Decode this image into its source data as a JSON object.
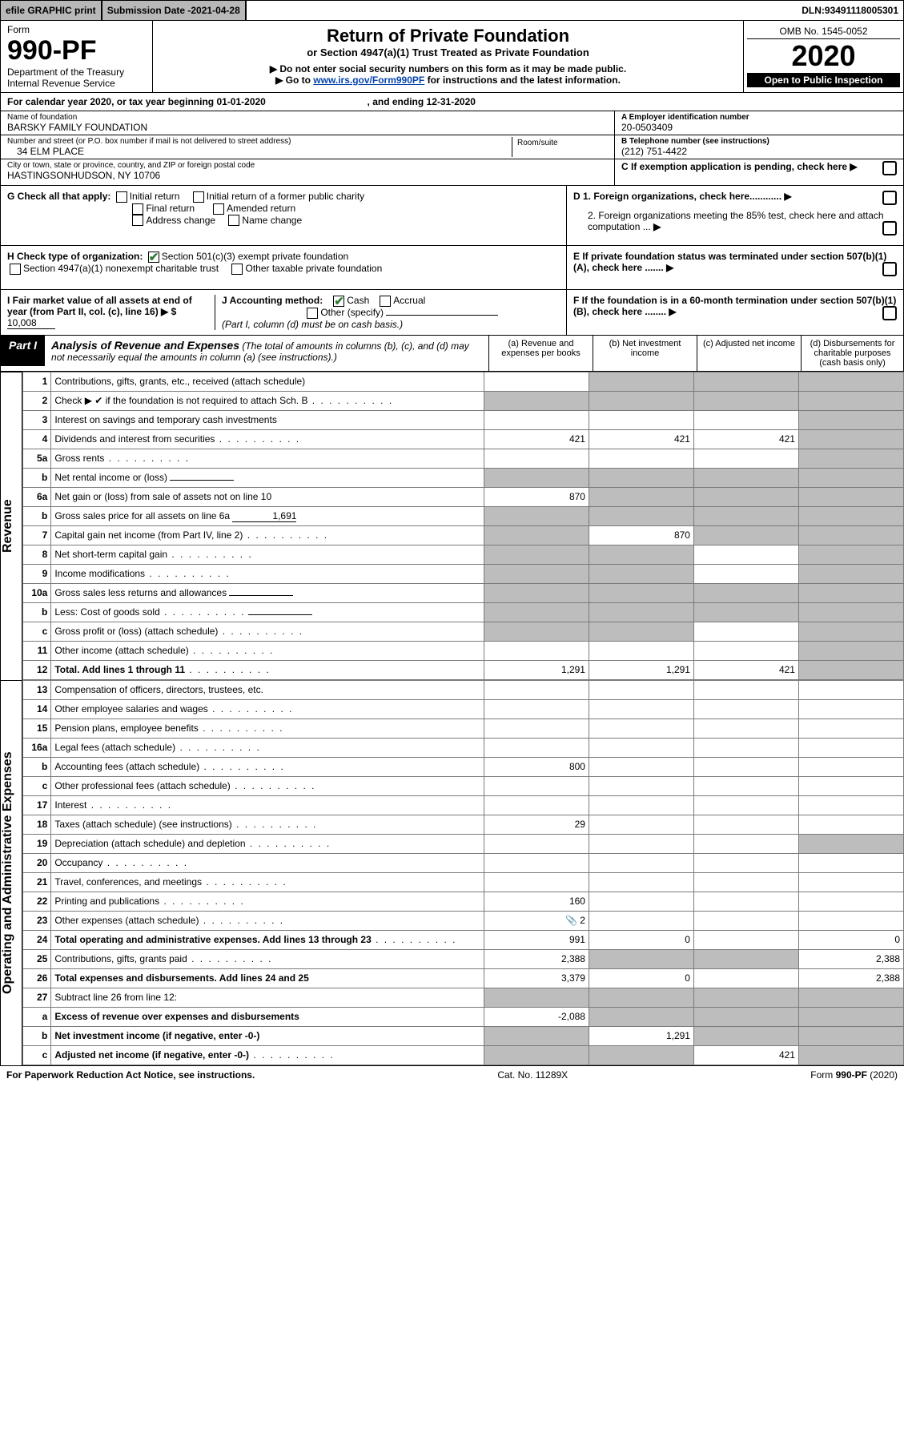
{
  "topbar": {
    "efile": "efile GRAPHIC print",
    "submission_label": "Submission Date - ",
    "submission_date": "2021-04-28",
    "dln_label": "DLN: ",
    "dln": "93491118005301"
  },
  "header": {
    "form_label": "Form",
    "form_number": "990-PF",
    "dept1": "Department of the Treasury",
    "dept2": "Internal Revenue Service",
    "title": "Return of Private Foundation",
    "subtitle": "or Section 4947(a)(1) Trust Treated as Private Foundation",
    "note1": "▶ Do not enter social security numbers on this form as it may be made public.",
    "note2_pre": "▶ Go to ",
    "note2_link": "www.irs.gov/Form990PF",
    "note2_post": " for instructions and the latest information.",
    "omb": "OMB No. 1545-0052",
    "year": "2020",
    "open": "Open to Public Inspection"
  },
  "calyear": {
    "text_pre": "For calendar year 2020, or tax year beginning ",
    "begin": "01-01-2020",
    "mid": " , and ending ",
    "end": "12-31-2020"
  },
  "foundation": {
    "name_label": "Name of foundation",
    "name": "BARSKY FAMILY FOUNDATION",
    "addr_label": "Number and street (or P.O. box number if mail is not delivered to street address)",
    "addr": "34 ELM PLACE",
    "room_label": "Room/suite",
    "city_label": "City or town, state or province, country, and ZIP or foreign postal code",
    "city": "HASTINGSONHUDSON, NY  10706",
    "ein_label": "A Employer identification number",
    "ein": "20-0503409",
    "phone_label": "B Telephone number (see instructions)",
    "phone": "(212) 751-4422",
    "c_label": "C If exemption application is pending, check here"
  },
  "checks": {
    "g_label": "G Check all that apply:",
    "initial": "Initial return",
    "initial_former": "Initial return of a former public charity",
    "final": "Final return",
    "amended": "Amended return",
    "addr_change": "Address change",
    "name_change": "Name change",
    "h_label": "H Check type of organization:",
    "h1": "Section 501(c)(3) exempt private foundation",
    "h2": "Section 4947(a)(1) nonexempt charitable trust",
    "h3": "Other taxable private foundation",
    "i_label": "I Fair market value of all assets at end of year (from Part II, col. (c), line 16) ▶ $",
    "i_value": "10,008",
    "j_label": "J Accounting method:",
    "j_cash": "Cash",
    "j_accrual": "Accrual",
    "j_other": "Other (specify)",
    "j_note": "(Part I, column (d) must be on cash basis.)",
    "d1": "D 1. Foreign organizations, check here............",
    "d2": "2. Foreign organizations meeting the 85% test, check here and attach computation ...",
    "e": "E  If private foundation status was terminated under section 507(b)(1)(A), check here .......",
    "f": "F  If the foundation is in a 60-month termination under section 507(b)(1)(B), check here ........"
  },
  "part1": {
    "tab": "Part I",
    "title": "Analysis of Revenue and Expenses",
    "note": " (The total of amounts in columns (b), (c), and (d) may not necessarily equal the amounts in column (a) (see instructions).)",
    "col_a": "(a)   Revenue and expenses per books",
    "col_b": "(b)  Net investment income",
    "col_c": "(c)  Adjusted net income",
    "col_d": "(d)  Disbursements for charitable purposes (cash basis only)"
  },
  "sections": {
    "revenue": "Revenue",
    "expenses": "Operating and Administrative Expenses"
  },
  "rows": [
    {
      "n": "1",
      "d": "Contributions, gifts, grants, etc., received (attach schedule)",
      "a": "",
      "b": "s",
      "c": "s",
      "dd": "s"
    },
    {
      "n": "2",
      "d": "Check ▶ ✔ if the foundation is not required to attach Sch. B",
      "dots": true,
      "a": "s",
      "b": "s",
      "c": "s",
      "dd": "s"
    },
    {
      "n": "3",
      "d": "Interest on savings and temporary cash investments",
      "a": "",
      "b": "",
      "c": "",
      "dd": "s"
    },
    {
      "n": "4",
      "d": "Dividends and interest from securities",
      "dots": true,
      "a": "421",
      "b": "421",
      "c": "421",
      "dd": "s"
    },
    {
      "n": "5a",
      "d": "Gross rents",
      "dots": true,
      "a": "",
      "b": "",
      "c": "",
      "dd": "s"
    },
    {
      "n": "b",
      "d": "Net rental income or (loss)",
      "fill": true,
      "a": "s",
      "b": "s",
      "c": "s",
      "dd": "s"
    },
    {
      "n": "6a",
      "d": "Net gain or (loss) from sale of assets not on line 10",
      "a": "870",
      "b": "s",
      "c": "s",
      "dd": "s"
    },
    {
      "n": "b",
      "d": "Gross sales price for all assets on line 6a",
      "fill": true,
      "fillval": "1,691",
      "a": "s",
      "b": "s",
      "c": "s",
      "dd": "s"
    },
    {
      "n": "7",
      "d": "Capital gain net income (from Part IV, line 2)",
      "dots": true,
      "a": "s",
      "b": "870",
      "c": "s",
      "dd": "s"
    },
    {
      "n": "8",
      "d": "Net short-term capital gain",
      "dots": true,
      "a": "s",
      "b": "s",
      "c": "",
      "dd": "s"
    },
    {
      "n": "9",
      "d": "Income modifications",
      "dots": true,
      "a": "s",
      "b": "s",
      "c": "",
      "dd": "s"
    },
    {
      "n": "10a",
      "d": "Gross sales less returns and allowances",
      "fill": true,
      "a": "s",
      "b": "s",
      "c": "s",
      "dd": "s"
    },
    {
      "n": "b",
      "d": "Less: Cost of goods sold",
      "dots": true,
      "fill": true,
      "a": "s",
      "b": "s",
      "c": "s",
      "dd": "s"
    },
    {
      "n": "c",
      "d": "Gross profit or (loss) (attach schedule)",
      "dots": true,
      "a": "s",
      "b": "s",
      "c": "",
      "dd": "s"
    },
    {
      "n": "11",
      "d": "Other income (attach schedule)",
      "dots": true,
      "a": "",
      "b": "",
      "c": "",
      "dd": "s"
    },
    {
      "n": "12",
      "d": "Total. Add lines 1 through 11",
      "bold": true,
      "dots": true,
      "a": "1,291",
      "b": "1,291",
      "c": "421",
      "dd": "s"
    }
  ],
  "exprows": [
    {
      "n": "13",
      "d": "Compensation of officers, directors, trustees, etc.",
      "a": "",
      "b": "",
      "c": "",
      "dd": ""
    },
    {
      "n": "14",
      "d": "Other employee salaries and wages",
      "dots": true,
      "a": "",
      "b": "",
      "c": "",
      "dd": ""
    },
    {
      "n": "15",
      "d": "Pension plans, employee benefits",
      "dots": true,
      "a": "",
      "b": "",
      "c": "",
      "dd": ""
    },
    {
      "n": "16a",
      "d": "Legal fees (attach schedule)",
      "dots": true,
      "a": "",
      "b": "",
      "c": "",
      "dd": ""
    },
    {
      "n": "b",
      "d": "Accounting fees (attach schedule)",
      "dots": true,
      "a": "800",
      "b": "",
      "c": "",
      "dd": ""
    },
    {
      "n": "c",
      "d": "Other professional fees (attach schedule)",
      "dots": true,
      "a": "",
      "b": "",
      "c": "",
      "dd": ""
    },
    {
      "n": "17",
      "d": "Interest",
      "dots": true,
      "a": "",
      "b": "",
      "c": "",
      "dd": ""
    },
    {
      "n": "18",
      "d": "Taxes (attach schedule) (see instructions)",
      "dots": true,
      "a": "29",
      "b": "",
      "c": "",
      "dd": ""
    },
    {
      "n": "19",
      "d": "Depreciation (attach schedule) and depletion",
      "dots": true,
      "a": "",
      "b": "",
      "c": "",
      "dd": "s"
    },
    {
      "n": "20",
      "d": "Occupancy",
      "dots": true,
      "a": "",
      "b": "",
      "c": "",
      "dd": ""
    },
    {
      "n": "21",
      "d": "Travel, conferences, and meetings",
      "dots": true,
      "a": "",
      "b": "",
      "c": "",
      "dd": ""
    },
    {
      "n": "22",
      "d": "Printing and publications",
      "dots": true,
      "a": "160",
      "b": "",
      "c": "",
      "dd": ""
    },
    {
      "n": "23",
      "d": "Other expenses (attach schedule)",
      "dots": true,
      "icon": true,
      "a": "2",
      "b": "",
      "c": "",
      "dd": ""
    },
    {
      "n": "24",
      "d": "Total operating and administrative expenses. Add lines 13 through 23",
      "bold": true,
      "dots": true,
      "a": "991",
      "b": "0",
      "c": "",
      "dd": "0"
    },
    {
      "n": "25",
      "d": "Contributions, gifts, grants paid",
      "dots": true,
      "a": "2,388",
      "b": "s",
      "c": "s",
      "dd": "2,388"
    },
    {
      "n": "26",
      "d": "Total expenses and disbursements. Add lines 24 and 25",
      "bold": true,
      "a": "3,379",
      "b": "0",
      "c": "",
      "dd": "2,388"
    },
    {
      "n": "27",
      "d": "Subtract line 26 from line 12:",
      "a": "s",
      "b": "s",
      "c": "s",
      "dd": "s"
    },
    {
      "n": "a",
      "d": "Excess of revenue over expenses and disbursements",
      "bold": true,
      "a": "-2,088",
      "b": "s",
      "c": "s",
      "dd": "s"
    },
    {
      "n": "b",
      "d": "Net investment income (if negative, enter -0-)",
      "bold": true,
      "a": "s",
      "b": "1,291",
      "c": "s",
      "dd": "s"
    },
    {
      "n": "c",
      "d": "Adjusted net income (if negative, enter -0-)",
      "bold": true,
      "dots": true,
      "a": "s",
      "b": "s",
      "c": "421",
      "dd": "s"
    }
  ],
  "footer": {
    "left": "For Paperwork Reduction Act Notice, see instructions.",
    "mid": "Cat. No. 11289X",
    "right": "Form 990-PF (2020)"
  },
  "colors": {
    "shade": "#bdbdbd",
    "check_green": "#2e7d32",
    "link": "#0645ad",
    "topbar_bg": "#b8b8b8"
  }
}
